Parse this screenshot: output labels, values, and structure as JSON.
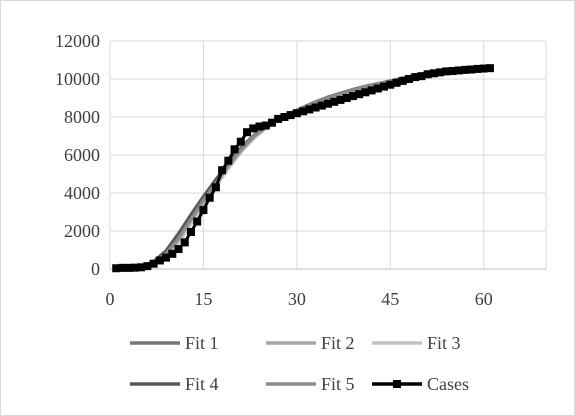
{
  "chart_data": {
    "type": "line",
    "title": "",
    "xlabel": "",
    "ylabel": "",
    "xlim": [
      0,
      70
    ],
    "ylim": [
      0,
      12000
    ],
    "xticks": [
      0,
      15,
      30,
      45,
      60
    ],
    "yticks": [
      0,
      2000,
      4000,
      6000,
      8000,
      10000,
      12000
    ],
    "grid": true,
    "legend_position": "bottom",
    "series": [
      {
        "name": "Fit 1",
        "kind": "line",
        "color": "#767676",
        "x": [
          1,
          3,
          5,
          7,
          9,
          11,
          13,
          15,
          17,
          19,
          21,
          23,
          25,
          27,
          29,
          31,
          33,
          35,
          37,
          39,
          41,
          43,
          45,
          47,
          49,
          51,
          53,
          55,
          57,
          59,
          61
        ],
        "y": [
          20,
          40,
          90,
          250,
          700,
          1500,
          2500,
          3500,
          4450,
          5400,
          6200,
          6900,
          7450,
          7850,
          8150,
          8450,
          8750,
          9000,
          9200,
          9400,
          9580,
          9730,
          9880,
          10030,
          10180,
          10300,
          10390,
          10450,
          10500,
          10530,
          10560
        ]
      },
      {
        "name": "Fit 2",
        "kind": "line",
        "color": "#a6a6a6",
        "x": [
          1,
          3,
          5,
          7,
          9,
          11,
          13,
          15,
          17,
          19,
          21,
          23,
          25,
          27,
          29,
          31,
          33,
          35,
          37,
          39,
          41,
          43,
          45,
          47,
          49,
          51,
          53,
          55,
          57,
          59,
          61
        ],
        "y": [
          20,
          40,
          110,
          320,
          820,
          1650,
          2650,
          3650,
          4600,
          5500,
          6300,
          6980,
          7520,
          7920,
          8200,
          8500,
          8800,
          9050,
          9250,
          9450,
          9620,
          9760,
          9900,
          10050,
          10190,
          10300,
          10390,
          10450,
          10500,
          10530,
          10560
        ]
      },
      {
        "name": "Fit 3",
        "kind": "line",
        "color": "#c3c3c3",
        "x": [
          1,
          3,
          5,
          7,
          9,
          11,
          13,
          15,
          17,
          19,
          21,
          23,
          25,
          27,
          29,
          31,
          33,
          35,
          37,
          39,
          41,
          43,
          45,
          47,
          49,
          51,
          53,
          55,
          57,
          59,
          61
        ],
        "y": [
          20,
          35,
          80,
          220,
          650,
          1400,
          2400,
          3400,
          4350,
          5300,
          6150,
          6850,
          7400,
          7800,
          8100,
          8400,
          8700,
          8950,
          9180,
          9380,
          9560,
          9720,
          9870,
          10020,
          10170,
          10290,
          10380,
          10450,
          10500,
          10530,
          10560
        ]
      },
      {
        "name": "Fit 4",
        "kind": "line",
        "color": "#595959",
        "x": [
          1,
          3,
          5,
          7,
          9,
          11,
          13,
          15,
          17,
          19,
          21,
          23,
          25,
          27,
          29,
          31,
          33,
          35,
          37,
          39,
          41,
          43,
          45,
          47,
          49,
          51,
          53,
          55,
          57,
          59,
          61
        ],
        "y": [
          20,
          45,
          120,
          380,
          950,
          1850,
          2850,
          3800,
          4700,
          5550,
          6350,
          7000,
          7500,
          7900,
          8200,
          8500,
          8780,
          9030,
          9240,
          9430,
          9600,
          9750,
          9890,
          10040,
          10180,
          10300,
          10390,
          10450,
          10500,
          10530,
          10560
        ]
      },
      {
        "name": "Fit 5",
        "kind": "line",
        "color": "#8c8c8c",
        "x": [
          1,
          3,
          5,
          7,
          9,
          11,
          13,
          15,
          17,
          19,
          21,
          23,
          25,
          27,
          29,
          31,
          33,
          35,
          37,
          39,
          41,
          43,
          45,
          47,
          49,
          51,
          53,
          55,
          57,
          59,
          61
        ],
        "y": [
          20,
          40,
          100,
          300,
          800,
          1600,
          2600,
          3600,
          4500,
          5450,
          6250,
          6950,
          7480,
          7880,
          8180,
          8480,
          8760,
          9010,
          9220,
          9410,
          9590,
          9740,
          9890,
          10040,
          10180,
          10300,
          10390,
          10450,
          10500,
          10530,
          10560
        ]
      },
      {
        "name": "Cases",
        "kind": "line-marker",
        "color": "#000000",
        "x": [
          1,
          2,
          3,
          4,
          5,
          6,
          7,
          8,
          9,
          10,
          11,
          12,
          13,
          14,
          15,
          16,
          17,
          18,
          19,
          20,
          21,
          22,
          23,
          24,
          25,
          26,
          27,
          28,
          29,
          30,
          31,
          32,
          33,
          34,
          35,
          36,
          37,
          38,
          39,
          40,
          41,
          42,
          43,
          44,
          45,
          46,
          47,
          48,
          49,
          50,
          51,
          52,
          53,
          54,
          55,
          56,
          57,
          58,
          59,
          60,
          61
        ],
        "y": [
          40,
          60,
          60,
          70,
          90,
          150,
          280,
          450,
          600,
          800,
          1050,
          1400,
          1950,
          2500,
          3100,
          3750,
          4300,
          5200,
          5700,
          6300,
          6700,
          7200,
          7400,
          7500,
          7550,
          7700,
          7900,
          8000,
          8100,
          8200,
          8300,
          8400,
          8500,
          8600,
          8700,
          8800,
          8900,
          9000,
          9100,
          9200,
          9300,
          9400,
          9500,
          9600,
          9700,
          9800,
          9900,
          10000,
          10100,
          10150,
          10250,
          10300,
          10350,
          10400,
          10420,
          10450,
          10480,
          10500,
          10530,
          10550,
          10570
        ]
      }
    ]
  }
}
